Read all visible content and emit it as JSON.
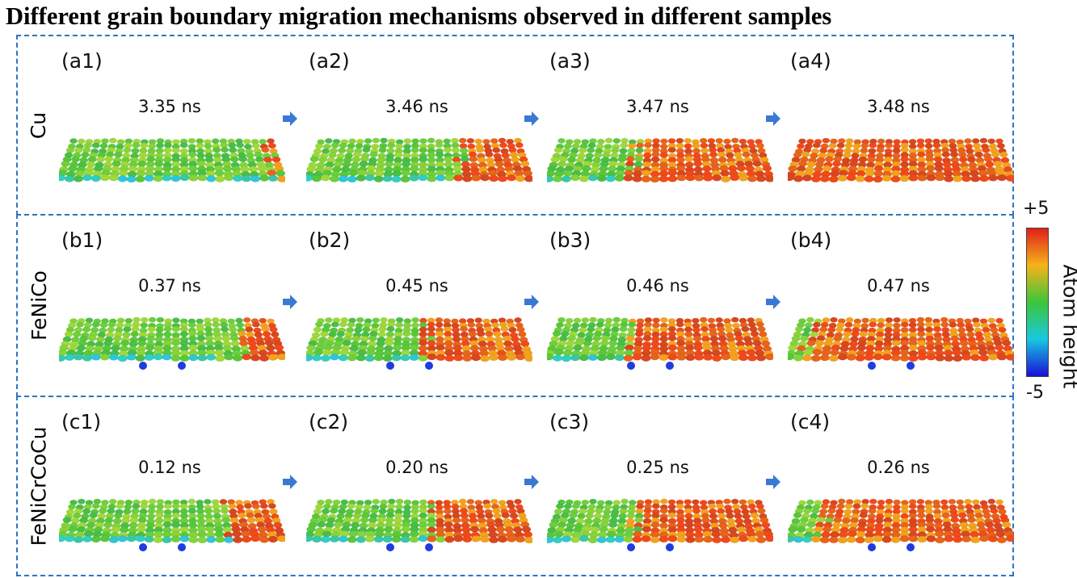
{
  "title": "Different grain boundary migration mechanisms observed in different samples",
  "colors": {
    "frame": "#2e74c0",
    "arrow": "#3a78d4",
    "high": "#e0301a",
    "low": "#1a2ad8",
    "mid": "#3cc63a"
  },
  "colorbar": {
    "max_label": "+5",
    "min_label": "-5",
    "title": "Atom height"
  },
  "rows": [
    {
      "sample": "Cu",
      "panels": [
        {
          "label": "(a1)",
          "time": "3.35 ns",
          "red_fraction": 0.0
        },
        {
          "label": "(a2)",
          "time": "3.46 ns",
          "red_fraction": 0.25
        },
        {
          "label": "(a3)",
          "time": "3.47 ns",
          "red_fraction": 0.6
        },
        {
          "label": "(a4)",
          "time": "3.48 ns",
          "red_fraction": 1.0
        }
      ]
    },
    {
      "sample": "FeNiCo",
      "panels": [
        {
          "label": "(b1)",
          "time": "0.37 ns",
          "red_fraction": 0.12
        },
        {
          "label": "(b2)",
          "time": "0.45 ns",
          "red_fraction": 0.45
        },
        {
          "label": "(b3)",
          "time": "0.46 ns",
          "red_fraction": 0.6
        },
        {
          "label": "(b4)",
          "time": "0.47 ns",
          "red_fraction": 0.9
        }
      ]
    },
    {
      "sample": "FeNiCrCoCu",
      "panels": [
        {
          "label": "(c1)",
          "time": "0.12 ns",
          "red_fraction": 0.2
        },
        {
          "label": "(c2)",
          "time": "0.20 ns",
          "red_fraction": 0.4
        },
        {
          "label": "(c3)",
          "time": "0.25 ns",
          "red_fraction": 0.6
        },
        {
          "label": "(c4)",
          "time": "0.26 ns",
          "red_fraction": 0.85
        }
      ]
    }
  ]
}
